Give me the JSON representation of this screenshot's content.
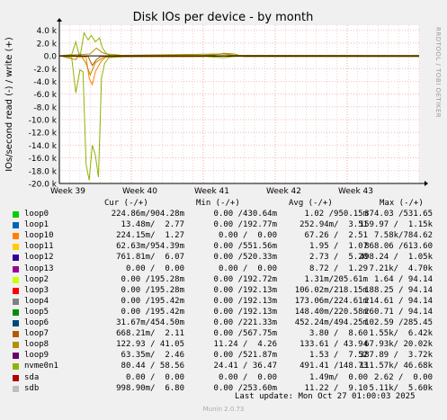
{
  "watermark": "RRDTOOL / TOBI OETIKER",
  "footer": "Munin 2.0.73",
  "last_update": "Last update: Mon Oct 27 01:00:03 2025",
  "legend_headers": {
    "cur": "Cur (-/+)",
    "min": "Min (-/+)",
    "avg": "Avg (-/+)",
    "max": "Max (-/+)"
  },
  "legend": [
    {
      "name": "loop0",
      "color": "#00cc00",
      "cur": "224.86m/904.28m",
      "min": "0.00 /430.64m",
      "avg": "1.02 /950.15m",
      "max": "374.03 /531.65"
    },
    {
      "name": "loop1",
      "color": "#0066b3",
      "cur": "13.48m/  2.77",
      "min": "0.00 /192.77m",
      "avg": "252.94m/  3.51",
      "max": "159.97 /  1.15k"
    },
    {
      "name": "loop10",
      "color": "#ff8000",
      "cur": "224.15m/  1.27",
      "min": "0.00 /  0.00",
      "avg": "67.26 /  2.51",
      "max": "7.58k/784.62"
    },
    {
      "name": "loop11",
      "color": "#ffcc00",
      "cur": "62.63m/954.39m",
      "min": "0.00 /551.56m",
      "avg": "1.95 /  1.07",
      "max": "868.06 /613.60"
    },
    {
      "name": "loop12",
      "color": "#330099",
      "cur": "761.81m/  6.07",
      "min": "0.00 /520.33m",
      "avg": "2.73 /  5.20",
      "max": "498.24 /  1.05k"
    },
    {
      "name": "loop13",
      "color": "#990099",
      "cur": "0.00 /  0.00",
      "min": "0.00 /  0.00",
      "avg": "8.72 /  1.29",
      "max": "7.21k/  4.70k"
    },
    {
      "name": "loop2",
      "color": "#ccff00",
      "cur": "0.00 /195.28m",
      "min": "0.00 /192.72m",
      "avg": "1.31m/205.61m",
      "max": "1.64 / 94.14"
    },
    {
      "name": "loop3",
      "color": "#ff0000",
      "cur": "0.00 /195.28m",
      "min": "0.00 /192.13m",
      "avg": "106.02m/218.15m",
      "max": "188.25 / 94.14"
    },
    {
      "name": "loop4",
      "color": "#808080",
      "cur": "0.00 /195.42m",
      "min": "0.00 /192.13m",
      "avg": "173.06m/224.61m",
      "max": "214.61 / 94.14"
    },
    {
      "name": "loop5",
      "color": "#008f00",
      "cur": "0.00 /195.42m",
      "min": "0.00 /192.13m",
      "avg": "148.40m/220.58m",
      "max": "260.71 / 94.14"
    },
    {
      "name": "loop6",
      "color": "#00487d",
      "cur": "31.67m/454.50m",
      "min": "0.00 /221.33m",
      "avg": "452.24m/494.25m",
      "max": "102.59 /285.45"
    },
    {
      "name": "loop7",
      "color": "#b35a00",
      "cur": "668.21m/  2.11",
      "min": "0.00 /567.75m",
      "avg": "3.80 /  8.60",
      "max": "1.55k/  6.42k"
    },
    {
      "name": "loop8",
      "color": "#b38f00",
      "cur": "122.93 / 41.05",
      "min": "11.24 /  4.26",
      "avg": "133.61 / 43.94",
      "max": "67.93k/ 20.02k"
    },
    {
      "name": "loop9",
      "color": "#6b006b",
      "cur": "63.35m/  2.46",
      "min": "0.00 /521.87m",
      "avg": "1.53 /  7.52",
      "max": "387.89 /  3.72k"
    },
    {
      "name": "nvme0n1",
      "color": "#8fb300",
      "cur": "80.44 / 58.56",
      "min": "24.41 / 36.47",
      "avg": "491.41 /148.73",
      "max": "111.57k/ 46.68k"
    },
    {
      "name": "sda",
      "color": "#b30000",
      "cur": "0.00 /  0.00",
      "min": "0.00 /  0.00",
      "avg": "1.49m/  0.00",
      "max": "2.62 /  0.00"
    },
    {
      "name": "sdb",
      "color": "#bebebe",
      "cur": "998.90m/  6.80",
      "min": "0.00 /253.60m",
      "avg": "11.22 /  9.10",
      "max": "5.11k/  5.60k"
    }
  ],
  "chart_data": {
    "type": "line",
    "title": "Disk IOs per device - by month",
    "ylabel": "IOs/second read (-) / write (+)",
    "xlabel": "",
    "x_ticks": [
      "Week 39",
      "Week 40",
      "Week 41",
      "Week 42",
      "Week 43"
    ],
    "y_ticks": [
      {
        "v": 4000,
        "label": "4.0 k"
      },
      {
        "v": 2000,
        "label": "2.0 k"
      },
      {
        "v": 0,
        "label": "0.0"
      },
      {
        "v": -2000,
        "label": "-2.0 k"
      },
      {
        "v": -4000,
        "label": "-4.0 k"
      },
      {
        "v": -6000,
        "label": "-6.0 k"
      },
      {
        "v": -8000,
        "label": "-8.0 k"
      },
      {
        "v": -10000,
        "label": "-10.0 k"
      },
      {
        "v": -12000,
        "label": "-12.0 k"
      },
      {
        "v": -14000,
        "label": "-14.0 k"
      },
      {
        "v": -16000,
        "label": "-16.0 k"
      },
      {
        "v": -18000,
        "label": "-18.0 k"
      },
      {
        "v": -20000,
        "label": "-20.0 k"
      }
    ],
    "ylim": [
      -20000,
      4800
    ],
    "xlim": [
      0,
      35
    ],
    "grid": true,
    "series": [
      {
        "name": "nvme0n1",
        "color": "#8fb300",
        "x": [
          0,
          1.2,
          1.6,
          2.0,
          2.3,
          2.6,
          2.9,
          3.2,
          3.5,
          3.8,
          4.1,
          4.4,
          4.8,
          6,
          10,
          14,
          16,
          17,
          19,
          24,
          30,
          35
        ],
        "y": [
          0,
          -300,
          -5800,
          -2200,
          -2500,
          -17000,
          -19500,
          -14000,
          -15500,
          -19000,
          -3500,
          -1200,
          -300,
          -150,
          -100,
          -80,
          -300,
          -100,
          -80,
          -60,
          -50,
          -50
        ]
      },
      {
        "name": "nvme0n1",
        "color": "#8fb300",
        "x": [
          0,
          1.2,
          1.6,
          2.0,
          2.4,
          2.8,
          3.1,
          3.5,
          3.9,
          4.2,
          4.6,
          6,
          10,
          14,
          16,
          17,
          19,
          24,
          30,
          35
        ],
        "y": [
          0,
          200,
          2200,
          -300,
          3600,
          2500,
          3200,
          2200,
          2800,
          1200,
          300,
          100,
          80,
          60,
          300,
          100,
          80,
          60,
          50,
          50
        ]
      },
      {
        "name": "loop10",
        "color": "#ff8000",
        "x": [
          0,
          2.6,
          2.9,
          3.2,
          3.5,
          3.8,
          4.1,
          4.5,
          5,
          35
        ],
        "y": [
          0,
          -200,
          -3500,
          -4500,
          -2500,
          -1600,
          -800,
          -200,
          0,
          0
        ]
      },
      {
        "name": "loop8",
        "color": "#b38f00",
        "x": [
          0,
          1.6,
          2.0,
          2.6,
          3.0,
          3.5,
          4.2,
          5,
          14,
          16,
          17,
          18,
          35
        ],
        "y": [
          0,
          -600,
          300,
          -1200,
          -3000,
          -1100,
          -300,
          -150,
          -130,
          400,
          300,
          -130,
          -130
        ]
      },
      {
        "name": "loop8",
        "color": "#b38f00",
        "x": [
          0,
          3,
          3.6,
          4.2,
          5,
          16,
          17,
          35
        ],
        "y": [
          0,
          300,
          1200,
          500,
          50,
          300,
          50,
          50
        ]
      },
      {
        "name": "loop7",
        "color": "#b35a00",
        "x": [
          0,
          2.8,
          3.2,
          3.6,
          4.0,
          35
        ],
        "y": [
          0,
          -100,
          -1500,
          -600,
          -100,
          0
        ]
      }
    ]
  }
}
